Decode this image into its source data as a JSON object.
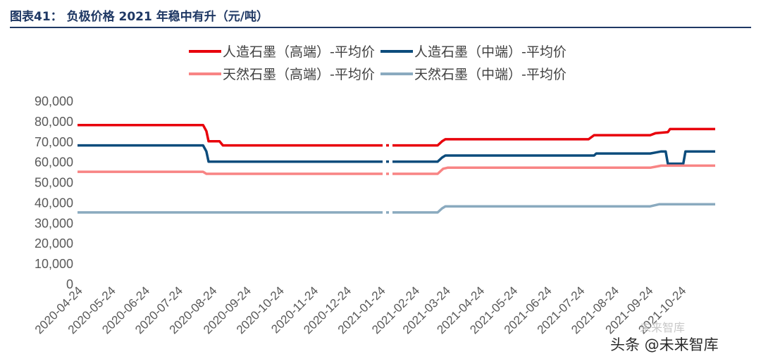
{
  "figure": {
    "label": "图表41：",
    "title": "负极价格 2021 年稳中有升（元/吨）"
  },
  "watermarks": {
    "primary": "头条 @未来智库",
    "secondary": "未来智库"
  },
  "chart_data": {
    "type": "line",
    "title": "负极价格 2021 年稳中有升（元/吨）",
    "xlabel": "",
    "ylabel": "",
    "ylim": [
      0,
      90000
    ],
    "yticks": [
      0,
      10000,
      20000,
      30000,
      40000,
      50000,
      60000,
      70000,
      80000,
      90000
    ],
    "ytick_labels": [
      "0",
      "10,000",
      "20,000",
      "30,000",
      "40,000",
      "50,000",
      "60,000",
      "70,000",
      "80,000",
      "90,000"
    ],
    "xticks": [
      "2020-04-24",
      "2020-05-24",
      "2020-06-24",
      "2020-07-24",
      "2020-08-24",
      "2020-09-24",
      "2020-10-24",
      "2020-11-24",
      "2020-12-24",
      "2021-01-24",
      "2021-02-24",
      "2021-03-24",
      "2021-04-24",
      "2021-05-24",
      "2021-06-24",
      "2021-07-24",
      "2021-08-24",
      "2021-09-24",
      "2021-10-24"
    ],
    "xlim": [
      "2020-04-24",
      "2021-11-24"
    ],
    "grid": false,
    "legend_position": "top",
    "series": [
      {
        "name": "人造石墨（高端）-平均价",
        "color": "#e8000b",
        "segments": [
          [
            [
              "2020-04-24",
              78000
            ],
            [
              "2020-08-16",
              78000
            ],
            [
              "2020-08-19",
              75000
            ],
            [
              "2020-08-21",
              70000
            ],
            [
              "2020-08-31",
              70000
            ],
            [
              "2020-09-03",
              68000
            ],
            [
              "2021-01-26",
              68000
            ]
          ],
          [
            [
              "2021-02-04",
              68000
            ],
            [
              "2021-03-17",
              68000
            ],
            [
              "2021-03-21",
              70000
            ],
            [
              "2021-03-24",
              71000
            ],
            [
              "2021-08-01",
              71000
            ],
            [
              "2021-08-06",
              73000
            ],
            [
              "2021-09-26",
              73000
            ],
            [
              "2021-10-01",
              74000
            ],
            [
              "2021-10-12",
              74500
            ],
            [
              "2021-10-14",
              76000
            ],
            [
              "2021-11-24",
              76000
            ]
          ]
        ]
      },
      {
        "name": "人造石墨（中端）-平均价",
        "color": "#0c4c7c",
        "segments": [
          [
            [
              "2020-04-24",
              68000
            ],
            [
              "2020-08-16",
              68000
            ],
            [
              "2020-08-19",
              65000
            ],
            [
              "2020-08-21",
              60000
            ],
            [
              "2021-01-26",
              60000
            ]
          ],
          [
            [
              "2021-02-04",
              60000
            ],
            [
              "2021-03-17",
              60000
            ],
            [
              "2021-03-21",
              62000
            ],
            [
              "2021-03-24",
              63000
            ],
            [
              "2021-08-06",
              63000
            ],
            [
              "2021-08-08",
              64000
            ],
            [
              "2021-09-26",
              64000
            ],
            [
              "2021-10-01",
              64500
            ],
            [
              "2021-10-06",
              65000
            ],
            [
              "2021-10-10",
              65000
            ],
            [
              "2021-10-12",
              59000
            ],
            [
              "2021-10-26",
              59000
            ],
            [
              "2021-10-28",
              65000
            ],
            [
              "2021-11-24",
              65000
            ]
          ]
        ]
      },
      {
        "name": "天然石墨（高端）-平均价",
        "color": "#f88484",
        "segments": [
          [
            [
              "2020-04-24",
              55000
            ],
            [
              "2020-08-16",
              55000
            ],
            [
              "2020-08-19",
              54000
            ],
            [
              "2021-01-26",
              54000
            ]
          ],
          [
            [
              "2021-02-04",
              54000
            ],
            [
              "2021-03-17",
              54000
            ],
            [
              "2021-03-22",
              56500
            ],
            [
              "2021-03-26",
              57000
            ],
            [
              "2021-09-26",
              57000
            ],
            [
              "2021-10-01",
              57500
            ],
            [
              "2021-10-06",
              58000
            ],
            [
              "2021-11-24",
              58000
            ]
          ]
        ]
      },
      {
        "name": "天然石墨（中端）-平均价",
        "color": "#8aaabf",
        "segments": [
          [
            [
              "2020-04-24",
              35000
            ],
            [
              "2021-01-26",
              35000
            ]
          ],
          [
            [
              "2021-02-04",
              35000
            ],
            [
              "2021-03-17",
              35000
            ],
            [
              "2021-03-21",
              37000
            ],
            [
              "2021-03-24",
              38000
            ],
            [
              "2021-09-26",
              38000
            ],
            [
              "2021-10-04",
              39000
            ],
            [
              "2021-11-24",
              39000
            ]
          ]
        ]
      }
    ]
  }
}
